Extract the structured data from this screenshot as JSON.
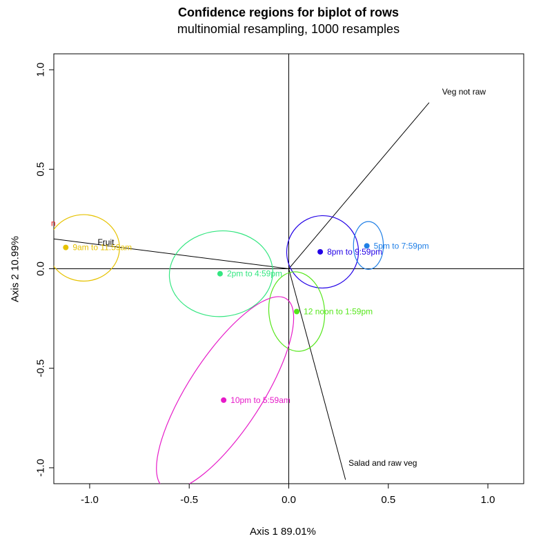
{
  "chart_data": {
    "type": "scatter",
    "title": "Confidence regions for biplot of rows",
    "subtitle": "multinomial resampling,  1000 resamples",
    "xlabel": "Axis 1    89.01%",
    "ylabel": "Axis 2    10.99%",
    "xlim": [
      -1.18,
      1.18
    ],
    "ylim": [
      -1.08,
      1.08
    ],
    "x_ticks": [
      -1.0,
      -0.5,
      0.0,
      0.5,
      1.0
    ],
    "y_ticks": [
      -1.0,
      -0.5,
      0.0,
      0.5,
      1.0
    ],
    "x_tick_labels": [
      "-1.0",
      "-0.5",
      "0.0",
      "0.5",
      "1.0"
    ],
    "y_tick_labels": [
      "-1.0",
      "-0.5",
      "0.0",
      "0.5",
      "1.0"
    ],
    "reference_lines": {
      "x": 0,
      "y": 0
    },
    "points": [
      {
        "label": "9am to 11:59am",
        "x": -1.12,
        "y": 0.107,
        "color": "#e6c200"
      },
      {
        "label": "2pm to 4:59pm",
        "x": -0.345,
        "y": -0.025,
        "color": "#33e680"
      },
      {
        "label": "8pm to 9:59pm",
        "x": 0.158,
        "y": 0.085,
        "color": "#2200e6"
      },
      {
        "label": "5pm to 7:59pm",
        "x": 0.392,
        "y": 0.115,
        "color": "#1f7fe6"
      },
      {
        "label": "12 noon to 1:59pm",
        "x": 0.04,
        "y": -0.215,
        "color": "#55e61a"
      },
      {
        "label": "10pm to 5:59am",
        "x": -0.327,
        "y": -0.66,
        "color": "#e61ac8"
      }
    ],
    "ellipses": [
      {
        "color": "#e6c200",
        "cx": -1.03,
        "cy": 0.105,
        "rx": 0.18,
        "ry": 0.167,
        "angle": 0
      },
      {
        "color": "#33e680",
        "cx": -0.34,
        "cy": -0.025,
        "rx": 0.26,
        "ry": 0.215,
        "angle": -5
      },
      {
        "color": "#2200e6",
        "cx": 0.17,
        "cy": 0.085,
        "rx": 0.18,
        "ry": 0.182,
        "angle": 20
      },
      {
        "color": "#1f7fe6",
        "cx": 0.4,
        "cy": 0.117,
        "rx": 0.075,
        "ry": 0.12,
        "angle": 0
      },
      {
        "color": "#55e61a",
        "cx": 0.04,
        "cy": -0.215,
        "rx": 0.14,
        "ry": 0.2,
        "angle": -5
      },
      {
        "color": "#e61ac8",
        "cx": -0.32,
        "cy": -0.625,
        "rx": 0.565,
        "ry": 0.185,
        "angle": -57
      }
    ],
    "vectors": [
      {
        "label": "Veg not raw",
        "x": 0.705,
        "y": 0.835
      },
      {
        "label": "Salad and raw veg",
        "x": 0.285,
        "y": -1.06
      },
      {
        "label": "Fruit",
        "x": -1.18,
        "y": 0.15
      }
    ],
    "vector_label_positions": [
      {
        "x": 0.77,
        "y": 0.875
      },
      {
        "x": 0.3,
        "y": -0.99
      },
      {
        "x": -0.96,
        "y": 0.12
      }
    ],
    "offscreen_fragment": {
      "text": "n",
      "color": "#e61a1a"
    },
    "grid": false,
    "legend": "none"
  }
}
